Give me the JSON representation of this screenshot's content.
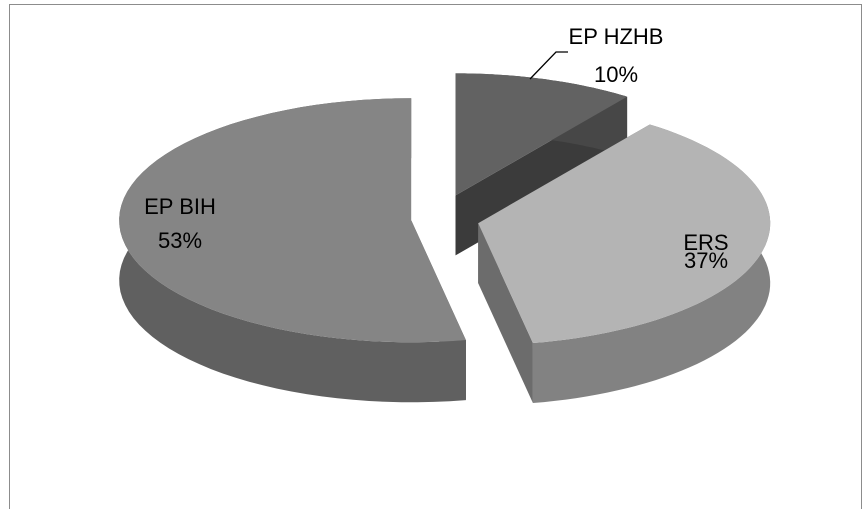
{
  "chart_data": {
    "type": "pie",
    "categories": [
      "EP HZHB",
      "ERS",
      "EP BIH"
    ],
    "values": [
      10,
      37,
      53
    ],
    "value_labels": [
      "10%",
      "37%",
      "53%"
    ],
    "colors": [
      "#626262",
      "#b4b4b4",
      "#858585"
    ]
  }
}
